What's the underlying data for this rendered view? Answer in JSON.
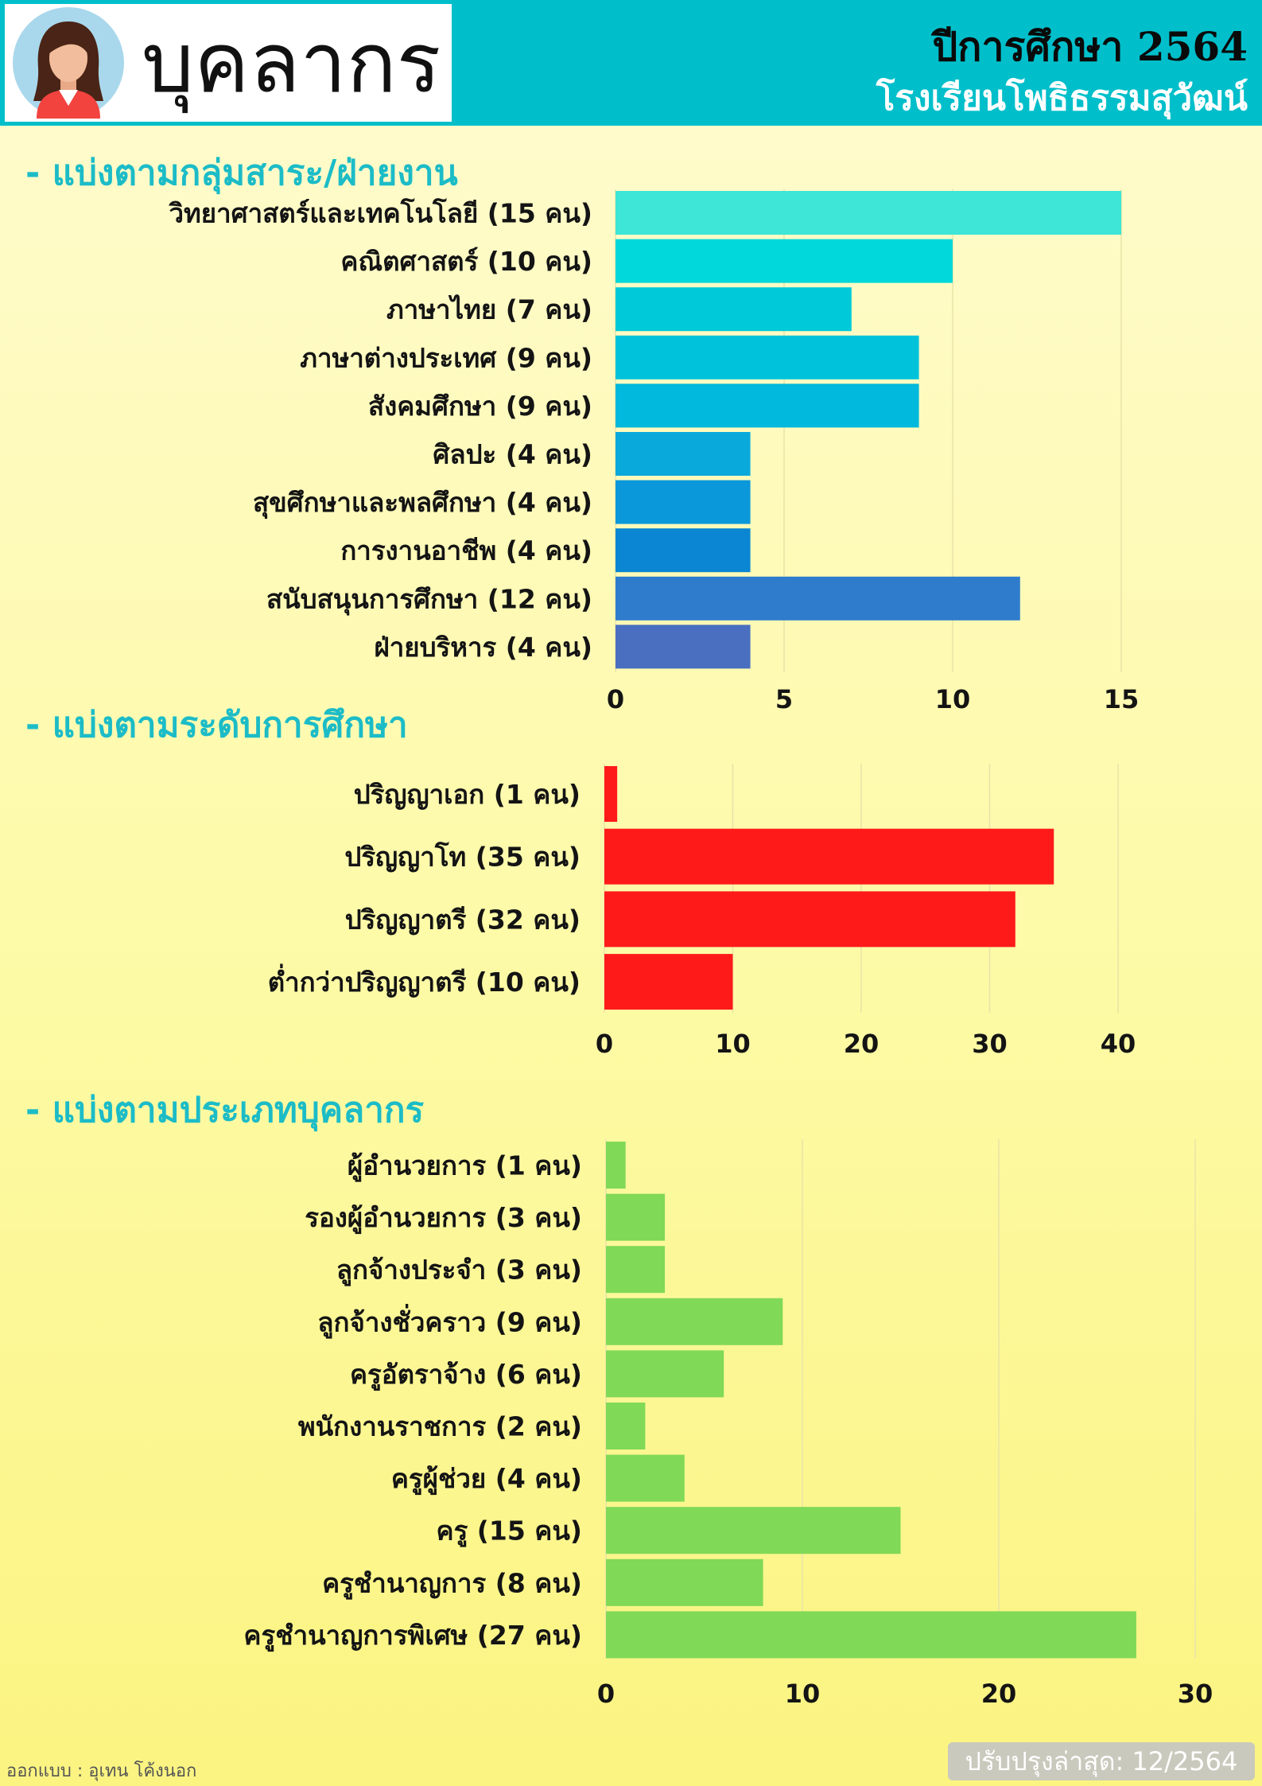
{
  "header": {
    "title": "บุคลากร",
    "year": "ปีการศึกษา 2564",
    "school": "โรงเรียนโพธิธรรมสุวัฒน์",
    "background_color": "#00bfca",
    "icons": [
      "woman-avatar-icon"
    ]
  },
  "footer": {
    "designer": "ออกแบบ : อุเทน โค้งนอก",
    "updated": "ปรับปรุงล่าสุด: 12/2564"
  },
  "chart_data": [
    {
      "type": "bar",
      "orientation": "horizontal",
      "title": "- แบ่งตามกลุ่มสาระ/ฝ่ายงาน",
      "categories": [
        "วิทยาศาสตร์และเทคโนโลยี (15 คน)",
        "คณิตศาสตร์ (10 คน)",
        "ภาษาไทย (7 คน)",
        "ภาษาต่างประเทศ (9 คน)",
        "สังคมศึกษา (9 คน)",
        "ศิลปะ (4 คน)",
        "สุขศึกษาและพลศึกษา (4 คน)",
        "การงานอาชีพ (4 คน)",
        "สนับสนุนการศึกษา (12 คน)",
        "ฝ่ายบริหาร (4 คน)"
      ],
      "values": [
        15,
        10,
        7,
        9,
        9,
        4,
        4,
        4,
        12,
        4
      ],
      "colors": [
        "#3de6d6",
        "#00d8db",
        "#00cada",
        "#00c3db",
        "#00b9dc",
        "#0aa9dc",
        "#0b98da",
        "#0b86d2",
        "#2f7ccd",
        "#4a6fc0"
      ],
      "xlim": [
        0,
        15
      ],
      "xticks": [
        0,
        5,
        10,
        15
      ],
      "grid": true
    },
    {
      "type": "bar",
      "orientation": "horizontal",
      "title": "- แบ่งตามระดับการศึกษา",
      "categories": [
        "ปริญญาเอก (1 คน)",
        "ปริญญาโท (35 คน)",
        "ปริญญาตรี (32 คน)",
        "ต่ำกว่าปริญญาตรี (10 คน)"
      ],
      "values": [
        1,
        35,
        32,
        10
      ],
      "colors": [
        "#ff1a1a"
      ],
      "xlim": [
        0,
        40
      ],
      "xticks": [
        0,
        10,
        20,
        30,
        40
      ],
      "grid": true
    },
    {
      "type": "bar",
      "orientation": "horizontal",
      "title": "- แบ่งตามประเภทบุคลากร",
      "categories": [
        "ผู้อำนวยการ (1 คน)",
        "รองผู้อำนวยการ (3 คน)",
        "ลูกจ้างประจำ (3 คน)",
        "ลูกจ้างชั่วคราว (9 คน)",
        "ครูอัตราจ้าง (6 คน)",
        "พนักงานราชการ (2 คน)",
        "ครูผู้ช่วย (4 คน)",
        "ครู (15 คน)",
        "ครูชำนาญการ (8 คน)",
        "ครูชำนาญการพิเศษ (27 คน)"
      ],
      "values": [
        1,
        3,
        3,
        9,
        6,
        2,
        4,
        15,
        8,
        27
      ],
      "colors": [
        "#80d957"
      ],
      "xlim": [
        0,
        30
      ],
      "xticks": [
        0,
        10,
        20,
        30
      ],
      "grid": true
    }
  ]
}
